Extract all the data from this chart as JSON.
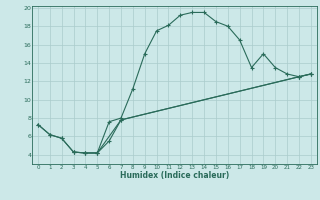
{
  "xlabel": "Humidex (Indice chaleur)",
  "background_color": "#cce8e8",
  "grid_color": "#aacccc",
  "line_color": "#2a6b5a",
  "xlim": [
    -0.5,
    23.5
  ],
  "ylim": [
    3.0,
    20.2
  ],
  "xticks": [
    0,
    1,
    2,
    3,
    4,
    5,
    6,
    7,
    8,
    9,
    10,
    11,
    12,
    13,
    14,
    15,
    16,
    17,
    18,
    19,
    20,
    21,
    22,
    23
  ],
  "yticks": [
    4,
    6,
    8,
    10,
    12,
    14,
    16,
    18,
    20
  ],
  "line1_x": [
    0,
    1,
    2,
    3,
    4,
    5,
    6,
    7,
    8,
    9,
    10,
    11,
    12,
    13,
    14,
    15,
    16,
    17,
    18,
    19,
    20,
    21,
    22,
    23
  ],
  "line1_y": [
    7.3,
    6.2,
    5.8,
    4.3,
    4.2,
    4.2,
    7.6,
    8.0,
    11.2,
    15.0,
    17.5,
    18.1,
    19.2,
    19.5,
    19.5,
    18.5,
    18.0,
    16.5,
    13.5,
    15.0,
    13.5,
    12.8,
    12.5,
    12.8
  ],
  "line2_x": [
    0,
    1,
    2,
    3,
    4,
    5,
    6,
    7,
    22,
    23
  ],
  "line2_y": [
    7.3,
    6.2,
    5.8,
    4.3,
    4.2,
    4.2,
    5.5,
    7.8,
    12.5,
    12.8
  ],
  "line3_x": [
    3,
    4,
    5,
    7,
    22,
    23
  ],
  "line3_y": [
    4.3,
    4.2,
    4.2,
    7.8,
    12.5,
    12.8
  ]
}
